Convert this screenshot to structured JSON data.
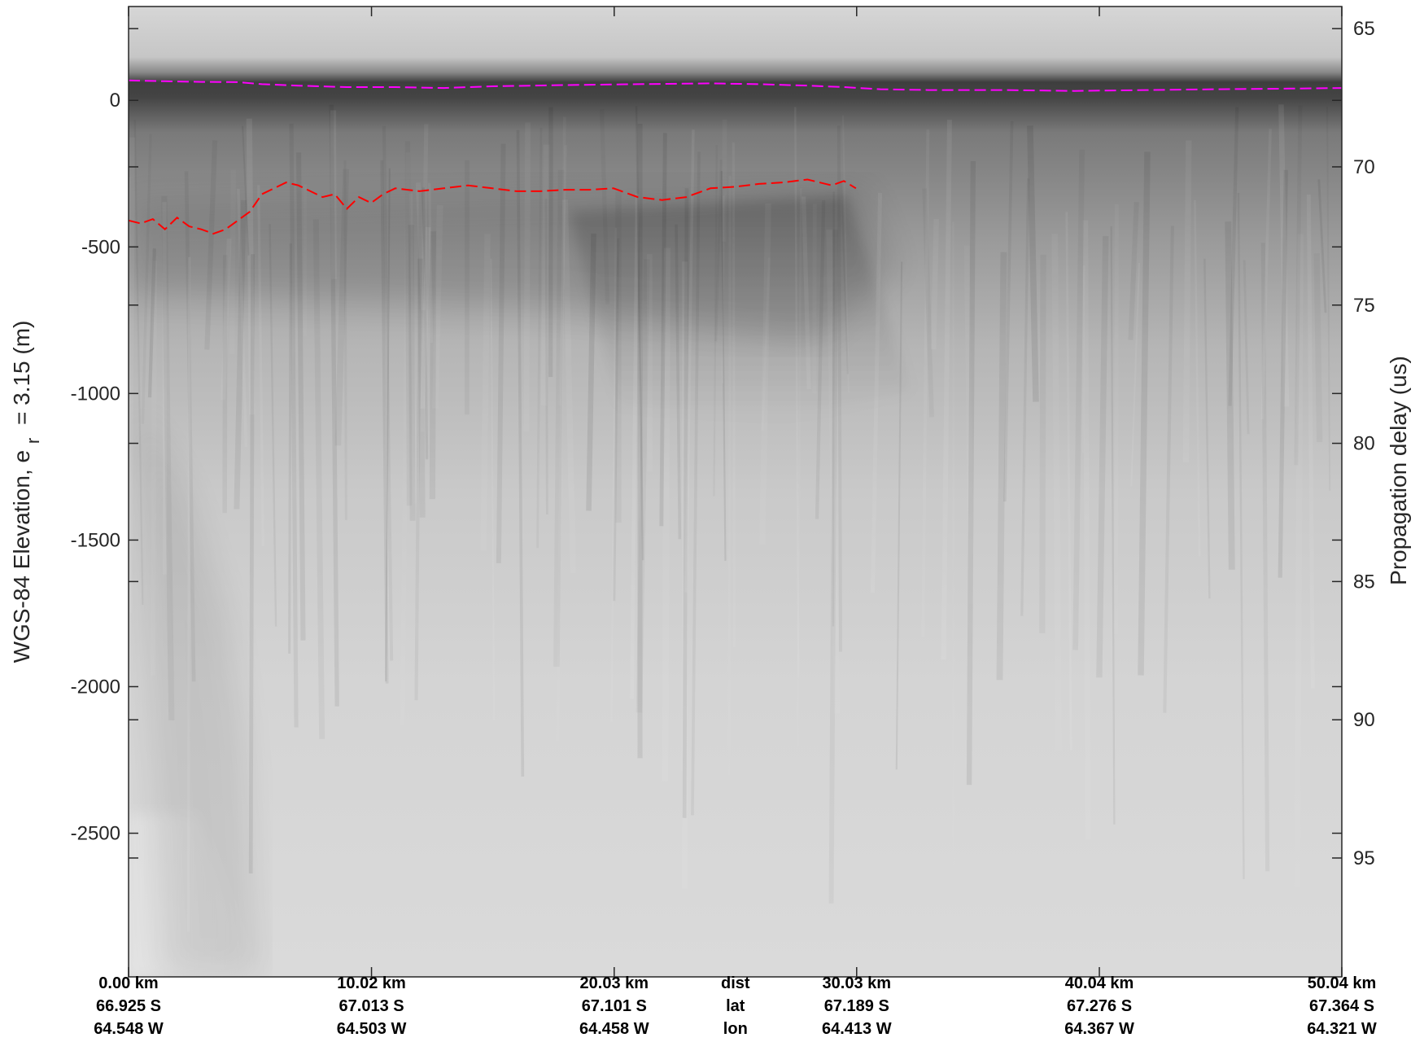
{
  "chart_data": {
    "type": "radargram",
    "ylabel_left": "WGS-84 Elevation, e",
    "ylabel_left_sub": "r",
    "ylabel_left_rest": "= 3.15 (m)",
    "ylabel_right": "Propagation delay (us)",
    "yticks_left": [
      0,
      -500,
      -1000,
      -1500,
      -2000,
      -2500
    ],
    "yticks_left_labels": [
      "0",
      "-500",
      "-1000",
      "-1500",
      "-2000",
      "-2500"
    ],
    "ylim_left": [
      -2990,
      320
    ],
    "yticks_right": [
      65,
      70,
      75,
      80,
      85,
      90,
      95
    ],
    "yticks_right_labels": [
      "65",
      "70",
      "75",
      "80",
      "85",
      "90",
      "95"
    ],
    "ylim_right": [
      64.2,
      99.3
    ],
    "xlim_km": [
      0,
      50.04
    ],
    "x_ticks": [
      {
        "dist_km": 0.0,
        "dist": "0.00 km",
        "lat": "66.925 S",
        "lon": "64.548 W"
      },
      {
        "dist_km": 10.02,
        "dist": "10.02 km",
        "lat": "67.013 S",
        "lon": "64.503 W"
      },
      {
        "dist_km": 20.03,
        "dist": "20.03 km",
        "lat": "67.101 S",
        "lon": "64.458 W"
      },
      {
        "dist_km": 30.03,
        "dist": "30.03 km",
        "lat": "67.189 S",
        "lon": "64.413 W"
      },
      {
        "dist_km": 40.04,
        "dist": "40.04 km",
        "lat": "67.276 S",
        "lon": "64.367 W"
      },
      {
        "dist_km": 50.04,
        "dist": "50.04 km",
        "lat": "67.364 S",
        "lon": "64.321 W"
      }
    ],
    "row_labels": {
      "dist": "dist",
      "lat": "lat",
      "lon": "lon"
    },
    "row_labels_x_km": 25.03,
    "series": [
      {
        "color": "#ff00ff",
        "dash": "dashed",
        "x": [
          0,
          1.5,
          3,
          4.5,
          5.5,
          7,
          9,
          11,
          13,
          15,
          18,
          21,
          24,
          26,
          28,
          29.5,
          31,
          33,
          36,
          39,
          42,
          45,
          48,
          50.04
        ],
        "y": [
          68,
          65,
          63,
          62,
          55,
          50,
          45,
          45,
          42,
          48,
          52,
          55,
          58,
          55,
          50,
          45,
          38,
          35,
          35,
          32,
          35,
          38,
          40,
          42
        ]
      },
      {
        "color": "#ff0000",
        "dash": "dashed",
        "x": [
          0,
          0.5,
          1.0,
          1.5,
          2.0,
          2.5,
          3.0,
          3.5,
          4.0,
          4.5,
          5.0,
          5.5,
          6.0,
          6.5,
          7.0,
          7.5,
          8.0,
          8.5,
          9.0,
          9.5,
          10.0,
          10.5,
          11.0,
          12.0,
          13.0,
          14.0,
          15.0,
          16.0,
          17.0,
          18.0,
          19.0,
          20.0,
          21.0,
          22.0,
          23.0,
          24.0,
          25.0,
          26.0,
          27.0,
          28.0,
          29.0,
          29.5,
          30.0
        ],
        "y": [
          -410,
          -420,
          -405,
          -440,
          -400,
          -430,
          -440,
          -455,
          -440,
          -410,
          -380,
          -320,
          -300,
          -280,
          -290,
          -310,
          -330,
          -320,
          -370,
          -330,
          -350,
          -320,
          -300,
          -310,
          -300,
          -290,
          -300,
          -310,
          -310,
          -305,
          -305,
          -300,
          -330,
          -340,
          -330,
          -300,
          -295,
          -285,
          -280,
          -270,
          -290,
          -275,
          -300
        ]
      }
    ]
  }
}
